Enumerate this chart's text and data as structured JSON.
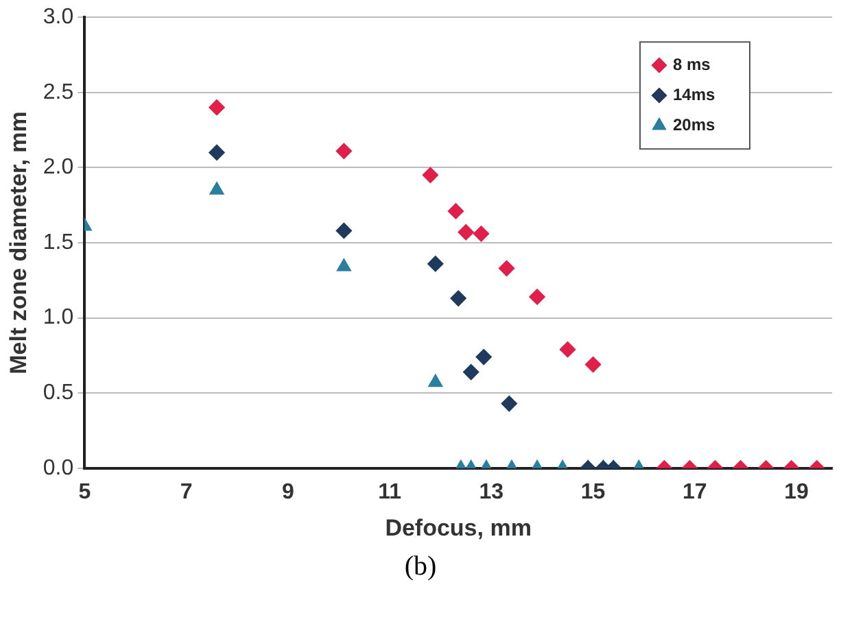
{
  "chart_data": {
    "type": "scatter",
    "xlabel": "Defocus, mm",
    "ylabel": "Melt zone diameter, mm",
    "xlim": [
      5,
      19.7
    ],
    "xticks": [
      5,
      7,
      9,
      11,
      13,
      15,
      17,
      19
    ],
    "ylim": [
      0,
      3
    ],
    "yticks": [
      {
        "value": 0,
        "label": "0.0"
      },
      {
        "value": 0.5,
        "label": "0.5"
      },
      {
        "value": 1,
        "label": "1.0"
      },
      {
        "value": 1.5,
        "label": "1.5"
      },
      {
        "value": 2,
        "label": "2.0"
      },
      {
        "value": 2.5,
        "label": "2.5"
      },
      {
        "value": 3,
        "label": "3.0"
      }
    ],
    "grid": "y",
    "legend": "top right",
    "marker": "diamond",
    "annotations": [
      "(b)"
    ],
    "series": [
      {
        "name": "8 ms",
        "color": "#e0204a",
        "x": [
          7.6,
          10.1,
          11.8,
          12.3,
          12.5,
          12.8,
          13.3,
          13.9,
          14.5,
          15.0,
          16.4,
          16.9,
          17.4,
          17.9,
          18.4,
          18.9,
          19.4
        ],
        "values": [
          2.4,
          2.11,
          1.95,
          1.71,
          1.57,
          1.56,
          1.33,
          1.14,
          0.79,
          0.69,
          0,
          0,
          0,
          0,
          0,
          0,
          0
        ]
      },
      {
        "name": "14ms",
        "color": "#1f3a5c",
        "x": [
          7.6,
          10.1,
          11.9,
          12.35,
          12.6,
          12.85,
          13.35,
          14.9,
          15.2,
          15.4
        ],
        "values": [
          2.1,
          1.58,
          1.36,
          1.13,
          0.64,
          0.74,
          0.43,
          0,
          0,
          0
        ]
      },
      {
        "name": "20ms",
        "color": "#2a7fa0",
        "marker": "triangle",
        "x": [
          5.0,
          7.6,
          10.1,
          11.9,
          12.4,
          12.6,
          12.9,
          13.4,
          13.9,
          14.4,
          14.9,
          15.2,
          15.4,
          15.9
        ],
        "values": [
          1.61,
          1.85,
          1.34,
          0.57,
          0,
          0,
          0,
          0,
          0,
          0,
          0,
          0,
          0,
          0
        ]
      }
    ]
  }
}
